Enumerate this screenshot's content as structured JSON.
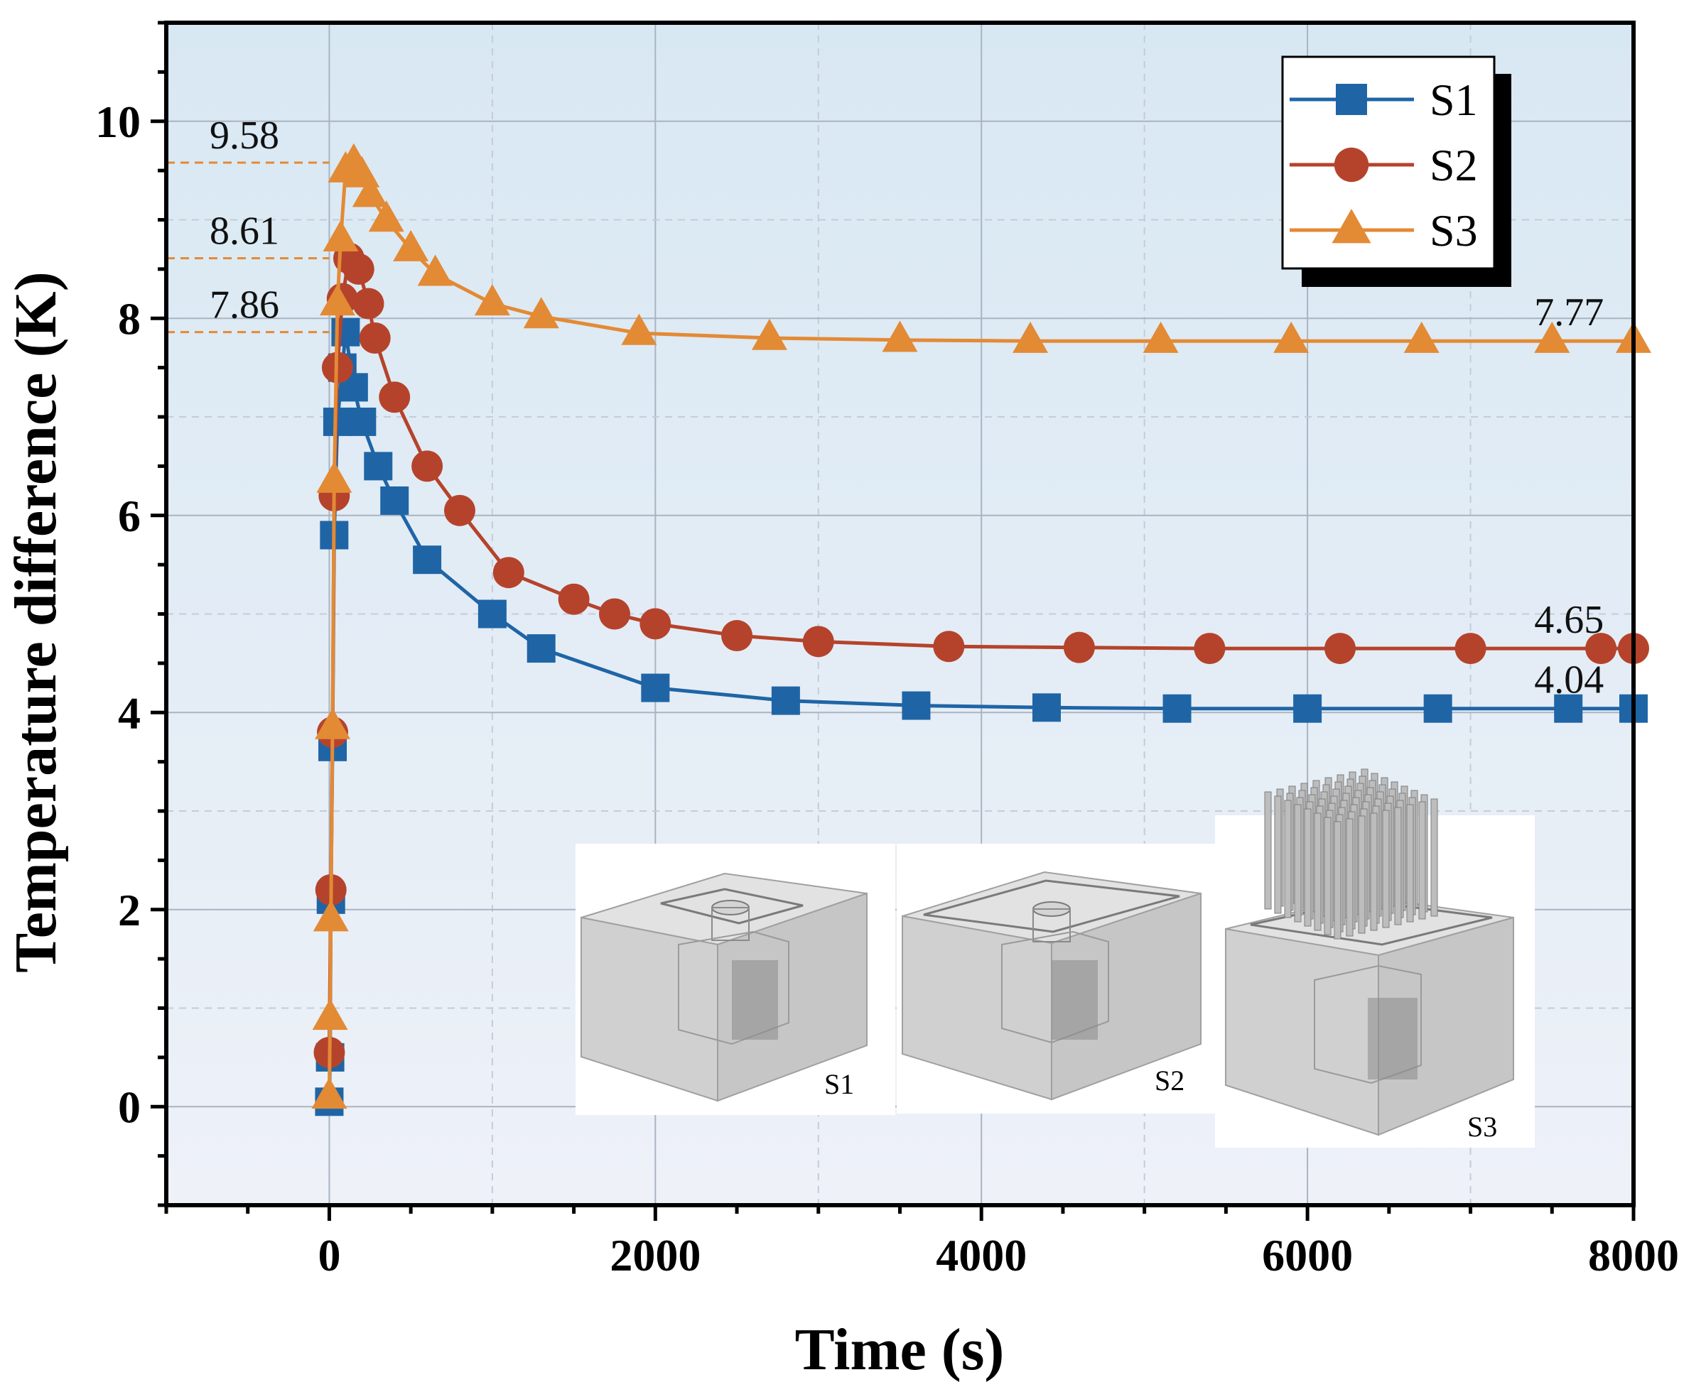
{
  "chart_data": {
    "type": "line",
    "title": "",
    "xlabel": "Time (s)",
    "ylabel": "Temperature difference (K)",
    "xlim": [
      -1000,
      8000
    ],
    "ylim": [
      -1,
      11
    ],
    "xticks": [
      0,
      2000,
      4000,
      6000,
      8000
    ],
    "xtick_labels": [
      "0",
      "2000",
      "4000",
      "6000",
      "8000"
    ],
    "yticks": [
      0,
      2,
      4,
      6,
      8,
      10
    ],
    "ytick_labels": [
      "0",
      "2",
      "4",
      "6",
      "8",
      "10"
    ],
    "grid": true,
    "legend_position": "top-right",
    "series": [
      {
        "name": "S1",
        "color": "#1f65a6",
        "marker": "square",
        "x": [
          0,
          5,
          10,
          20,
          30,
          50,
          80,
          100,
          150,
          200,
          300,
          400,
          600,
          1000,
          1300,
          2000,
          2800,
          3600,
          4400,
          5200,
          6000,
          6800,
          7600,
          8000
        ],
        "y": [
          0.05,
          0.5,
          2.1,
          3.65,
          5.8,
          6.95,
          7.5,
          7.86,
          7.3,
          6.95,
          6.5,
          6.15,
          5.55,
          5.0,
          4.65,
          4.25,
          4.12,
          4.07,
          4.05,
          4.04,
          4.04,
          4.04,
          4.04,
          4.04
        ]
      },
      {
        "name": "S2",
        "color": "#b5432b",
        "marker": "circle",
        "x": [
          0,
          10,
          20,
          30,
          50,
          80,
          120,
          180,
          240,
          280,
          400,
          600,
          800,
          1100,
          1500,
          1750,
          2000,
          2500,
          3000,
          3800,
          4600,
          5400,
          6200,
          7000,
          7800,
          8000
        ],
        "y": [
          0.55,
          2.2,
          3.8,
          6.2,
          7.5,
          8.2,
          8.61,
          8.5,
          8.15,
          7.8,
          7.2,
          6.5,
          6.05,
          5.42,
          5.15,
          5.0,
          4.9,
          4.78,
          4.72,
          4.67,
          4.66,
          4.65,
          4.65,
          4.65,
          4.65,
          4.65
        ]
      },
      {
        "name": "S3",
        "color": "#e38a35",
        "marker": "triangle",
        "x": [
          0,
          5,
          10,
          20,
          30,
          50,
          70,
          100,
          150,
          200,
          250,
          350,
          500,
          650,
          1000,
          1300,
          1900,
          2700,
          3500,
          4300,
          5100,
          5900,
          6700,
          7500,
          8000
        ],
        "y": [
          0.1,
          0.9,
          1.9,
          3.85,
          6.35,
          8.15,
          8.8,
          9.5,
          9.58,
          9.45,
          9.25,
          9.0,
          8.7,
          8.45,
          8.15,
          8.02,
          7.85,
          7.8,
          7.78,
          7.77,
          7.77,
          7.77,
          7.77,
          7.77,
          7.77
        ]
      }
    ],
    "annotations": [
      {
        "text": "9.58",
        "x": 0,
        "y": 9.58,
        "kind": "peak"
      },
      {
        "text": "8.61",
        "x": 0,
        "y": 8.61,
        "kind": "peak"
      },
      {
        "text": "7.86",
        "x": 0,
        "y": 7.86,
        "kind": "peak"
      },
      {
        "text": "7.77",
        "x": 7500,
        "y": 7.77,
        "kind": "steady"
      },
      {
        "text": "4.65",
        "x": 7500,
        "y": 4.65,
        "kind": "steady"
      },
      {
        "text": "4.04",
        "x": 7500,
        "y": 4.04,
        "kind": "steady"
      }
    ],
    "inset": {
      "description": "3D models of three cooling structures",
      "labels": [
        "S1",
        "S2",
        "S3"
      ]
    }
  }
}
